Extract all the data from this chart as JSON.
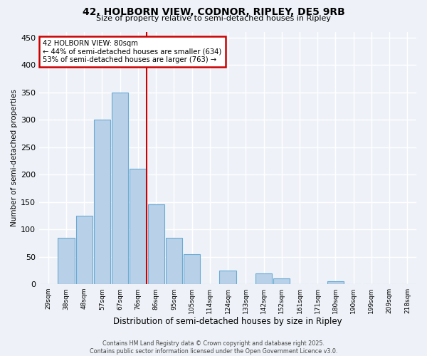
{
  "title1": "42, HOLBORN VIEW, CODNOR, RIPLEY, DE5 9RB",
  "title2": "Size of property relative to semi-detached houses in Ripley",
  "xlabel": "Distribution of semi-detached houses by size in Ripley",
  "ylabel": "Number of semi-detached properties",
  "categories": [
    "29sqm",
    "38sqm",
    "48sqm",
    "57sqm",
    "67sqm",
    "76sqm",
    "86sqm",
    "95sqm",
    "105sqm",
    "114sqm",
    "124sqm",
    "133sqm",
    "142sqm",
    "152sqm",
    "161sqm",
    "171sqm",
    "180sqm",
    "190sqm",
    "199sqm",
    "209sqm",
    "218sqm"
  ],
  "values": [
    0,
    85,
    125,
    300,
    350,
    210,
    145,
    85,
    55,
    0,
    25,
    0,
    20,
    10,
    0,
    0,
    5,
    0,
    0,
    0,
    0
  ],
  "bar_color": "#b8d0e8",
  "bar_edge_color": "#6aaad4",
  "vline_index": 5,
  "vline_color": "#cc0000",
  "annotation_text": "42 HOLBORN VIEW: 80sqm\n← 44% of semi-detached houses are smaller (634)\n53% of semi-detached houses are larger (763) →",
  "annotation_box_edge": "#cc0000",
  "ylim": [
    0,
    460
  ],
  "yticks": [
    0,
    50,
    100,
    150,
    200,
    250,
    300,
    350,
    400,
    450
  ],
  "background_color": "#eef2f8",
  "grid_color": "#ffffff",
  "footer": "Contains HM Land Registry data © Crown copyright and database right 2025.\nContains public sector information licensed under the Open Government Licence v3.0."
}
